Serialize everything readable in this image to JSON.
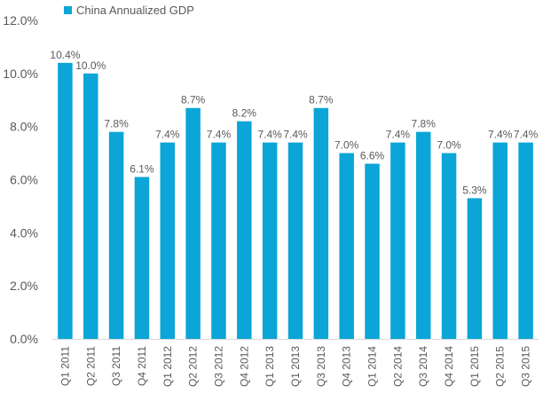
{
  "chart_data": {
    "type": "bar",
    "title": "",
    "xlabel": "",
    "ylabel": "",
    "legend": {
      "entries": [
        "China Annualized GDP"
      ],
      "placement": "top-left"
    },
    "grid": false,
    "categories": [
      "Q1 2011",
      "Q2 2011",
      "Q3 2011",
      "Q4 2011",
      "Q1 2012",
      "Q2 2012",
      "Q3 2012",
      "Q4 2012",
      "Q1 2013",
      "Q1 2013",
      "Q3 2013",
      "Q4 2013",
      "Q1 2014",
      "Q2 2014",
      "Q3 2014",
      "Q4 2014",
      "Q1 2015",
      "Q2 2015",
      "Q3 2015"
    ],
    "series": [
      {
        "name": "China Annualized GDP",
        "color": "#0ba5d8",
        "values": [
          10.4,
          10.0,
          7.8,
          6.1,
          7.4,
          8.7,
          7.4,
          8.2,
          7.4,
          7.4,
          8.7,
          7.0,
          6.6,
          7.4,
          7.8,
          7.0,
          5.3,
          7.4,
          7.4
        ],
        "labels": [
          "10.4%",
          "10.0%",
          "7.8%",
          "6.1%",
          "7.4%",
          "8.7%",
          "7.4%",
          "8.2%",
          "7.4%",
          "7.4%",
          "8.7%",
          "7.0%",
          "6.6%",
          "7.4%",
          "7.8%",
          "7.0%",
          "5.3%",
          "7.4%",
          "7.4%"
        ]
      }
    ],
    "ylim": [
      0,
      12
    ],
    "yticks": [
      0,
      2,
      4,
      6,
      8,
      10,
      12
    ],
    "ytick_labels": [
      "0.0%",
      "2.0%",
      "4.0%",
      "6.0%",
      "8.0%",
      "10.0%",
      "12.0%"
    ],
    "colors": {
      "bar": "#0ba5d8",
      "axis": "#d9d9d9",
      "tick_text": "#595959",
      "label_text": "#595959"
    }
  }
}
